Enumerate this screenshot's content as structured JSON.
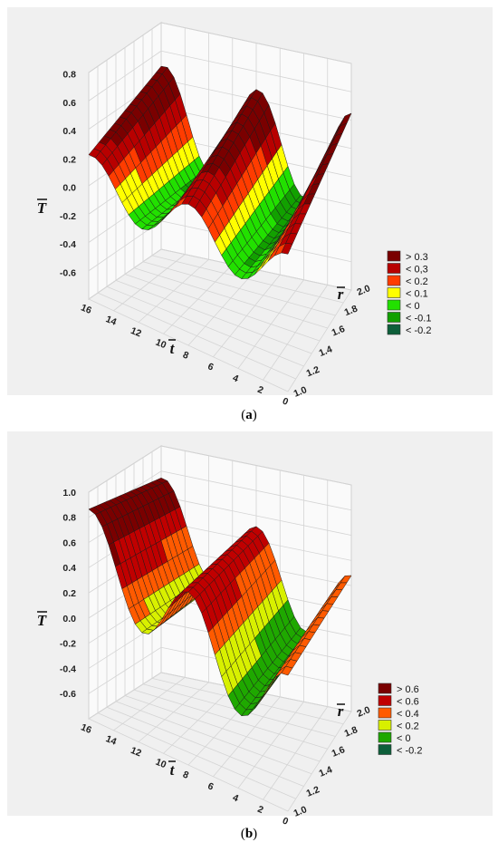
{
  "chart_data": [
    {
      "type": "surface3d",
      "caption": "(a)",
      "caption_letter": "a",
      "z_axis_label": "T",
      "r_axis_label": "r",
      "t_axis_label": "t",
      "z_ticks": [
        "0.8",
        "0.6",
        "0.4",
        "0.2",
        "0.0",
        "-0.2",
        "-0.4",
        "-0.6"
      ],
      "r_ticks": [
        "2.0",
        "1.8",
        "1.6",
        "1.4",
        "1.2",
        "1.0"
      ],
      "t_ticks": [
        "16",
        "14",
        "12",
        "10",
        "8",
        "6",
        "4",
        "2",
        "0"
      ],
      "zlim": [
        -0.7,
        0.8
      ],
      "rlim": [
        1.0,
        2.0
      ],
      "tlim": [
        0,
        16
      ],
      "legend": [
        {
          "label": "> 0.3",
          "color": "#7a0000"
        },
        {
          "label": "< 0,3",
          "color": "#b80000"
        },
        {
          "label": "< 0.2",
          "color": "#ff3c00"
        },
        {
          "label": "< 0.1",
          "color": "#ffff00"
        },
        {
          "label": "< 0",
          "color": "#22e000"
        },
        {
          "label": "< -0.1",
          "color": "#12a000"
        },
        {
          "label": "< -0.2",
          "color": "#0d5f3a"
        }
      ]
    },
    {
      "type": "surface3d",
      "caption": "(b)",
      "caption_letter": "b",
      "z_axis_label": "T",
      "r_axis_label": "r",
      "t_axis_label": "t",
      "z_ticks": [
        "1.0",
        "0.8",
        "0.6",
        "0.4",
        "0.2",
        "0.0",
        "-0.2",
        "-0.4",
        "-0.6"
      ],
      "r_ticks": [
        "2.0",
        "1.8",
        "1.6",
        "1.4",
        "1.2",
        "1.0"
      ],
      "t_ticks": [
        "16",
        "14",
        "12",
        "10",
        "8",
        "6",
        "4",
        "2",
        "0"
      ],
      "zlim": [
        -0.7,
        1.0
      ],
      "rlim": [
        1.0,
        2.0
      ],
      "tlim": [
        0,
        16
      ],
      "legend": [
        {
          "label": "> 0.6",
          "color": "#7a0000"
        },
        {
          "label": "< 0.6",
          "color": "#c00000"
        },
        {
          "label": "< 0.4",
          "color": "#ff5a00"
        },
        {
          "label": "< 0.2",
          "color": "#d8f000"
        },
        {
          "label": "< 0",
          "color": "#1fa800"
        },
        {
          "label": "< -0.2",
          "color": "#0d5f3a"
        }
      ]
    }
  ]
}
